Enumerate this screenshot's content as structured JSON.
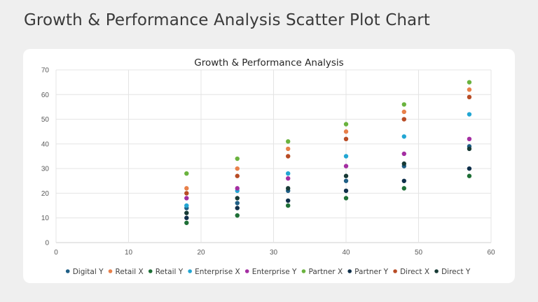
{
  "slide": {
    "title": "Growth & Performance Analysis Scatter Plot Chart"
  },
  "chart_data": {
    "type": "scatter",
    "title": "Growth & Performance Analysis",
    "xlabel": "",
    "ylabel": "",
    "xlim": [
      0,
      60
    ],
    "ylim": [
      0,
      70
    ],
    "x_ticks": [
      0,
      10,
      20,
      30,
      40,
      50,
      60
    ],
    "y_ticks": [
      0,
      10,
      20,
      30,
      40,
      50,
      60,
      70
    ],
    "grid": true,
    "legend_position": "bottom",
    "x": [
      18,
      25,
      32,
      40,
      48,
      57
    ],
    "series": [
      {
        "name": "Digital Y",
        "color": "#1f5f86",
        "values": [
          14,
          16,
          21,
          25,
          31,
          39
        ]
      },
      {
        "name": "Retail X",
        "color": "#e8804a",
        "values": [
          22,
          30,
          38,
          45,
          53,
          62
        ]
      },
      {
        "name": "Retail Y",
        "color": "#1e6f36",
        "values": [
          8,
          11,
          15,
          18,
          22,
          27
        ]
      },
      {
        "name": "Enterprise X",
        "color": "#22a6d3",
        "values": [
          15,
          21,
          28,
          35,
          43,
          52
        ]
      },
      {
        "name": "Enterprise Y",
        "color": "#a42ea2",
        "values": [
          18,
          22,
          26,
          31,
          36,
          42
        ]
      },
      {
        "name": "Partner X",
        "color": "#6ab33e",
        "values": [
          28,
          34,
          41,
          48,
          56,
          65
        ]
      },
      {
        "name": "Partner Y",
        "color": "#0f2f4a",
        "values": [
          10,
          14,
          17,
          21,
          25,
          30
        ]
      },
      {
        "name": "Direct X",
        "color": "#b84c25",
        "values": [
          20,
          27,
          35,
          42,
          50,
          59
        ]
      },
      {
        "name": "Direct Y",
        "color": "#173a35",
        "values": [
          12,
          18,
          22,
          27,
          32,
          38
        ]
      }
    ]
  }
}
